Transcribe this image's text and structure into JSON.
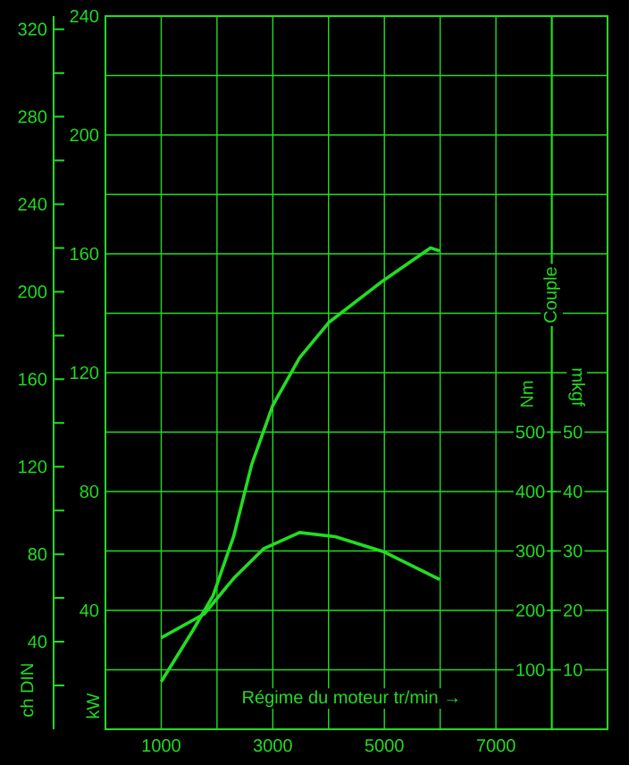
{
  "chart_data": {
    "type": "line",
    "xlabel": "Régime du moteur tr/min →",
    "ylabel": "kW",
    "y2label": "Nm",
    "y3label": "ch DIN",
    "annotations": [
      "Couple",
      "mkgf",
      "10",
      "20",
      "30",
      "40",
      "50"
    ],
    "color": "#22dd22",
    "grid": true,
    "xlim": [
      0,
      9000
    ],
    "xticks": [
      1000,
      {
        "value": 2000,
        "label": null
      },
      3000,
      {
        "value": 4000,
        "label": null
      },
      5000,
      {
        "value": 6000,
        "label": null
      },
      7000,
      {
        "value": 8000,
        "label": null
      }
    ],
    "ylim": [
      0,
      240
    ],
    "yticks": [
      {
        "value": 20,
        "label": null
      },
      40,
      {
        "value": 60,
        "label": null
      },
      80,
      {
        "value": 100,
        "label": null
      },
      120,
      {
        "value": 140,
        "label": null
      },
      160,
      {
        "value": 180,
        "label": null
      },
      200,
      {
        "value": 220,
        "label": null
      },
      240
    ],
    "y2lim": [
      0,
      1200
    ],
    "y2ticks": [
      100,
      200,
      300,
      400,
      500
    ],
    "y3lim": [
      0,
      326
    ],
    "y3ticks": [
      40,
      80,
      120,
      160,
      200,
      240,
      280,
      320
    ],
    "series": [
      {
        "color": "#22dd22",
        "x": [
          1000,
          1560,
          1930,
          2300,
          2620,
          3000,
          3480,
          4010,
          4980,
          5830,
          5990
        ],
        "values": [
          16,
          33,
          45,
          65,
          89,
          109,
          125,
          137,
          151,
          162,
          161
        ]
      },
      {
        "color": "#22dd22",
        "axis": "y2",
        "x": [
          1000,
          1770,
          2300,
          2840,
          3480,
          4120,
          4980,
          5990
        ],
        "values": [
          154,
          194,
          254,
          304,
          331,
          324,
          299,
          252
        ]
      }
    ]
  }
}
